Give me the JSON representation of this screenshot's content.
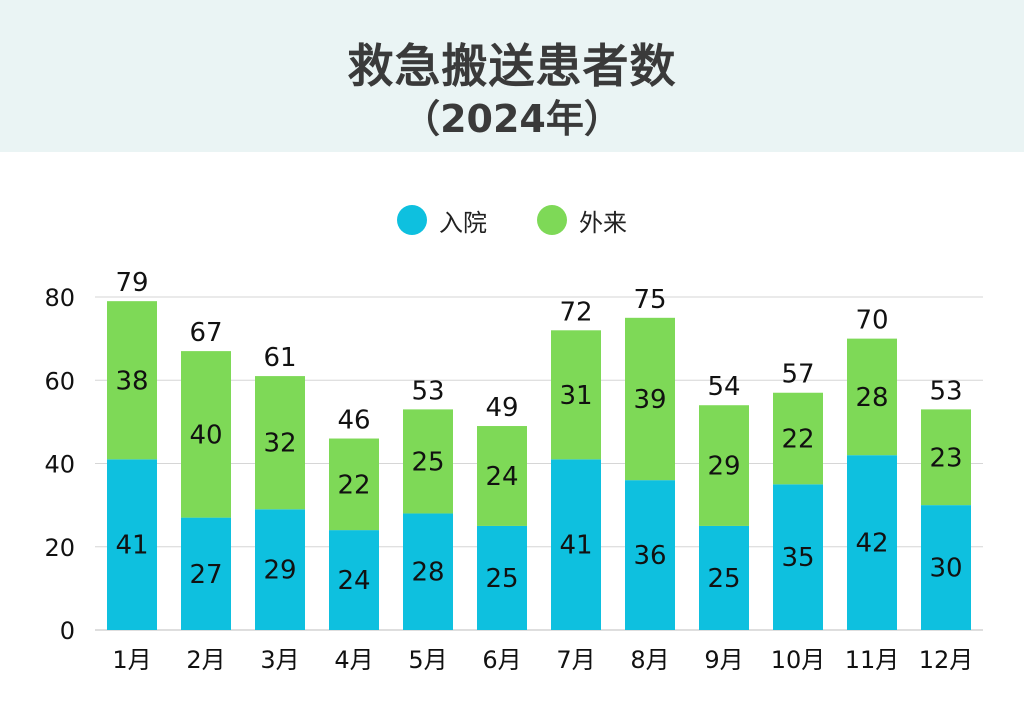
{
  "header": {
    "title": "救急搬送患者数",
    "subtitle": "（2024年）"
  },
  "colors": {
    "inpatient": "#0ec0df",
    "outpatient": "#7ed957",
    "gridline": "#d6d6d6",
    "header_bg": "#eaf4f4"
  },
  "chart_data": {
    "type": "bar",
    "stacked": true,
    "title": "救急搬送患者数",
    "subtitle": "（2024年）",
    "categories": [
      "1月",
      "2月",
      "3月",
      "4月",
      "5月",
      "6月",
      "7月",
      "8月",
      "9月",
      "10月",
      "11月",
      "12月"
    ],
    "series": [
      {
        "name": "入院",
        "values": [
          41,
          27,
          29,
          24,
          28,
          25,
          41,
          36,
          25,
          35,
          42,
          30
        ]
      },
      {
        "name": "外来",
        "values": [
          38,
          40,
          32,
          22,
          25,
          24,
          31,
          39,
          29,
          22,
          28,
          23
        ]
      }
    ],
    "totals": [
      79,
      67,
      61,
      46,
      53,
      49,
      72,
      75,
      54,
      57,
      70,
      53
    ],
    "ylim": [
      0,
      80
    ],
    "yticks": [
      0,
      20,
      40,
      60,
      80
    ],
    "grid": true,
    "legend": "top-center",
    "xlabel": "",
    "ylabel": ""
  }
}
